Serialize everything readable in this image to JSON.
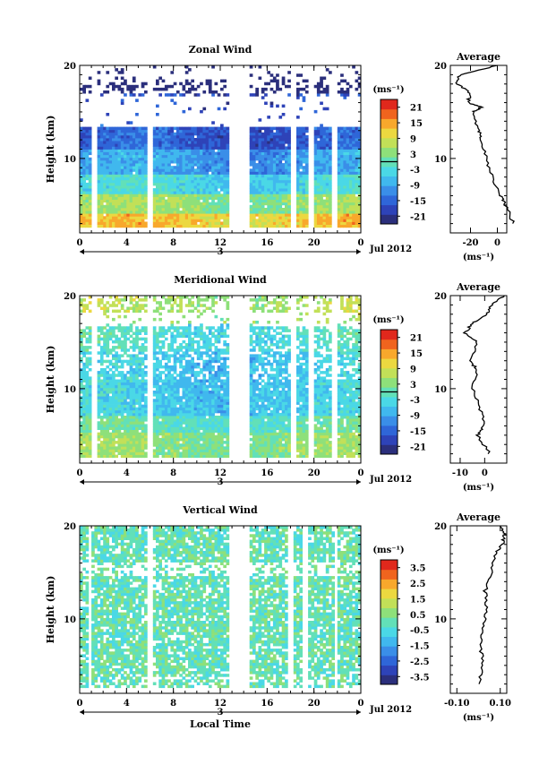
{
  "figure": {
    "date_label": "Jul 2012",
    "day_label": "3",
    "xlabel_bottom": "Local Time",
    "colorbar_unit": "(ms⁻¹)",
    "avg_title": "Average",
    "avg_unit": "(ms⁻¹)",
    "colormap": [
      "#2b2f7c",
      "#2e43b8",
      "#2f66d8",
      "#3a8ee8",
      "#40b8ee",
      "#4ad8e6",
      "#62e0b8",
      "#8ee07a",
      "#c2e058",
      "#ecd840",
      "#f8a82c",
      "#f0641e",
      "#e0281c"
    ]
  },
  "chart_data": [
    {
      "type": "heatmap",
      "title": "Zonal Wind",
      "xlabel": "",
      "ylabel": "Height (km)",
      "x_range": [
        0,
        24
      ],
      "x_ticks": [
        "0",
        "4",
        "8",
        "12",
        "16",
        "20",
        "0"
      ],
      "y_range": [
        2,
        20
      ],
      "y_ticks": [
        "10",
        "20"
      ],
      "colorbar": {
        "range": [
          -24,
          24
        ],
        "ticks": [
          "21",
          "15",
          "9",
          "3",
          "-3",
          "-9",
          "-15",
          "-21"
        ],
        "contour_at": 0
      },
      "data_gaps_hours": [
        [
          1.0,
          1.4
        ],
        [
          5.7,
          6.1
        ],
        [
          12.7,
          14.3
        ],
        [
          17.9,
          18.4
        ],
        [
          19.3,
          19.8
        ],
        [
          21.5,
          21.8
        ]
      ],
      "profile": [
        {
          "h": 3,
          "v": 12
        },
        {
          "h": 5,
          "v": 6
        },
        {
          "h": 6,
          "v": 2
        },
        {
          "h": 8,
          "v": -4
        },
        {
          "h": 10,
          "v": -8
        },
        {
          "h": 12,
          "v": -12
        },
        {
          "h": 13,
          "v": -14
        },
        {
          "h": 15,
          "v": -18
        },
        {
          "h": 15.5,
          "v": -12
        },
        {
          "h": 16,
          "v": -22
        },
        {
          "h": 17,
          "v": -20
        },
        {
          "h": 18,
          "v": -30
        },
        {
          "h": 19,
          "v": -28
        },
        {
          "h": 20,
          "v": 0
        }
      ],
      "avg_xlim": [
        -35,
        7
      ],
      "avg_xticks": [
        {
          "v": -20,
          "label": "-20"
        },
        {
          "v": 0,
          "label": "0"
        }
      ]
    },
    {
      "type": "heatmap",
      "title": "Meridional Wind",
      "xlabel": "",
      "ylabel": "Height (km)",
      "x_range": [
        0,
        24
      ],
      "x_ticks": [
        "0",
        "4",
        "8",
        "12",
        "16",
        "20",
        "0"
      ],
      "y_range": [
        2,
        20
      ],
      "y_ticks": [
        "10",
        "20"
      ],
      "colorbar": {
        "range": [
          -24,
          24
        ],
        "ticks": [
          "21",
          "15",
          "9",
          "3",
          "-3",
          "-9",
          "-15",
          "-21"
        ],
        "contour_at": 0
      },
      "data_gaps_hours": [
        [
          1.0,
          1.4
        ],
        [
          5.7,
          6.1
        ],
        [
          12.7,
          14.3
        ],
        [
          17.9,
          18.4
        ],
        [
          19.3,
          19.8
        ],
        [
          21.5,
          21.8
        ]
      ],
      "profile": [
        {
          "h": 3,
          "v": 2
        },
        {
          "h": 5,
          "v": -3
        },
        {
          "h": 6,
          "v": 0
        },
        {
          "h": 8,
          "v": -2
        },
        {
          "h": 10,
          "v": -5
        },
        {
          "h": 12,
          "v": -3
        },
        {
          "h": 13,
          "v": -6
        },
        {
          "h": 15,
          "v": -3
        },
        {
          "h": 16,
          "v": -8
        },
        {
          "h": 17,
          "v": -5
        },
        {
          "h": 18,
          "v": 1
        },
        {
          "h": 19,
          "v": 3
        },
        {
          "h": 20,
          "v": 8
        }
      ],
      "avg_xlim": [
        -14,
        9
      ],
      "avg_xticks": [
        {
          "v": -10,
          "label": "-10"
        },
        {
          "v": 0,
          "label": "0"
        }
      ]
    },
    {
      "type": "heatmap",
      "title": "Vertical Wind",
      "xlabel": "Local Time",
      "ylabel": "Height (km)",
      "x_range": [
        0,
        24
      ],
      "x_ticks": [
        "0",
        "4",
        "8",
        "12",
        "16",
        "20",
        "0"
      ],
      "y_range": [
        2,
        20
      ],
      "y_ticks": [
        "10",
        "20"
      ],
      "colorbar": {
        "range": [
          -4,
          4
        ],
        "ticks": [
          "3.5",
          "2.5",
          "1.5",
          "0.5",
          "-0.5",
          "-1.5",
          "-2.5",
          "-3.5"
        ],
        "contour_at": null
      },
      "data_gaps_hours": [
        [
          0.6,
          0.8
        ],
        [
          5.6,
          6.0
        ],
        [
          12.7,
          14.3
        ],
        [
          17.6,
          18.1
        ],
        [
          19.0,
          19.3
        ],
        [
          21.6,
          21.8
        ]
      ],
      "profile": [
        {
          "h": 3,
          "v": 0.0
        },
        {
          "h": 5,
          "v": 0.02
        },
        {
          "h": 7,
          "v": 0.01
        },
        {
          "h": 9,
          "v": 0.02
        },
        {
          "h": 11,
          "v": 0.04
        },
        {
          "h": 13,
          "v": 0.03
        },
        {
          "h": 15,
          "v": 0.06
        },
        {
          "h": 17,
          "v": 0.08
        },
        {
          "h": 18,
          "v": 0.11
        },
        {
          "h": 19,
          "v": 0.12
        },
        {
          "h": 20,
          "v": 0.1
        }
      ],
      "avg_xlim": [
        -0.13,
        0.13
      ],
      "avg_xticks": [
        {
          "v": -0.1,
          "label": "-0.10"
        },
        {
          "v": 0.1,
          "label": "0.10"
        }
      ]
    }
  ]
}
